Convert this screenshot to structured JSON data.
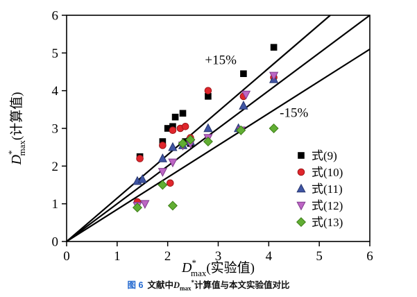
{
  "caption": {
    "prefix": "图 6",
    "text1": "文献中",
    "symbol": "D",
    "sub": "max",
    "sup": "*",
    "text2": "计算值与本文实验值对比"
  },
  "chart_data": {
    "type": "scatter",
    "title": "",
    "xlabel": {
      "symbol": "D",
      "sup": "*",
      "sub": "max",
      "text": "(实验值)"
    },
    "ylabel": {
      "symbol": "D",
      "sup": "*",
      "sub": "max",
      "text": "(计算值)"
    },
    "xlim": [
      0,
      6
    ],
    "ylim": [
      0,
      6
    ],
    "xticks": [
      0,
      1,
      2,
      3,
      4,
      5,
      6
    ],
    "yticks": [
      0,
      1,
      2,
      3,
      4,
      5,
      6
    ],
    "grid": false,
    "legend_position": "right-inside",
    "ref_lines": [
      {
        "slope": 1.15,
        "label": "+15%"
      },
      {
        "slope": 1.0,
        "label": ""
      },
      {
        "slope": 0.85,
        "label": "-15%"
      }
    ],
    "annotations": [
      {
        "text": "+15%",
        "x": 3.05,
        "y": 4.7
      },
      {
        "text": "-15%",
        "x": 4.5,
        "y": 3.3
      }
    ],
    "series": [
      {
        "id": "eq9",
        "name": "式(9)",
        "marker": "square",
        "color": "#000000",
        "edge": "#000000",
        "points": [
          [
            1.45,
            2.25
          ],
          [
            1.9,
            2.65
          ],
          [
            2.0,
            3.0
          ],
          [
            2.1,
            3.05
          ],
          [
            2.15,
            3.3
          ],
          [
            2.3,
            3.4
          ],
          [
            2.35,
            2.65
          ],
          [
            2.45,
            2.6
          ],
          [
            2.8,
            3.85
          ],
          [
            3.5,
            4.45
          ],
          [
            4.1,
            5.15
          ]
        ]
      },
      {
        "id": "eq10",
        "name": "式(10)",
        "marker": "circle",
        "color": "#e0262c",
        "edge": "#9e1418",
        "points": [
          [
            1.4,
            1.05
          ],
          [
            1.45,
            2.2
          ],
          [
            1.9,
            2.55
          ],
          [
            2.05,
            1.55
          ],
          [
            2.1,
            2.95
          ],
          [
            2.25,
            3.0
          ],
          [
            2.35,
            3.05
          ],
          [
            2.45,
            2.75
          ],
          [
            2.8,
            4.0
          ],
          [
            3.5,
            3.85
          ],
          [
            4.1,
            4.35
          ]
        ]
      },
      {
        "id": "eq11",
        "name": "式(11)",
        "marker": "triangle-up",
        "color": "#3f55a4",
        "edge": "#26356e",
        "points": [
          [
            1.4,
            1.6
          ],
          [
            1.5,
            1.65
          ],
          [
            1.9,
            2.2
          ],
          [
            2.1,
            2.5
          ],
          [
            2.3,
            2.55
          ],
          [
            2.45,
            2.65
          ],
          [
            2.8,
            3.0
          ],
          [
            3.4,
            3.0
          ],
          [
            3.5,
            3.6
          ],
          [
            4.1,
            4.3
          ]
        ]
      },
      {
        "id": "eq12",
        "name": "式(12)",
        "marker": "triangle-down",
        "color": "#bd65c4",
        "edge": "#7e3a8c",
        "points": [
          [
            1.4,
            0.95
          ],
          [
            1.55,
            1.0
          ],
          [
            1.9,
            1.85
          ],
          [
            2.1,
            2.1
          ],
          [
            2.3,
            2.55
          ],
          [
            2.45,
            2.6
          ],
          [
            2.8,
            2.75
          ],
          [
            3.45,
            2.95
          ],
          [
            3.55,
            3.9
          ],
          [
            4.1,
            4.4
          ]
        ]
      },
      {
        "id": "eq13",
        "name": "式(13)",
        "marker": "diamond",
        "color": "#61ae33",
        "edge": "#3c7d17",
        "points": [
          [
            1.4,
            0.9
          ],
          [
            1.9,
            1.5
          ],
          [
            2.1,
            0.95
          ],
          [
            2.3,
            2.6
          ],
          [
            2.45,
            2.7
          ],
          [
            2.8,
            2.65
          ],
          [
            3.45,
            2.95
          ],
          [
            4.1,
            3.0
          ]
        ]
      }
    ]
  }
}
